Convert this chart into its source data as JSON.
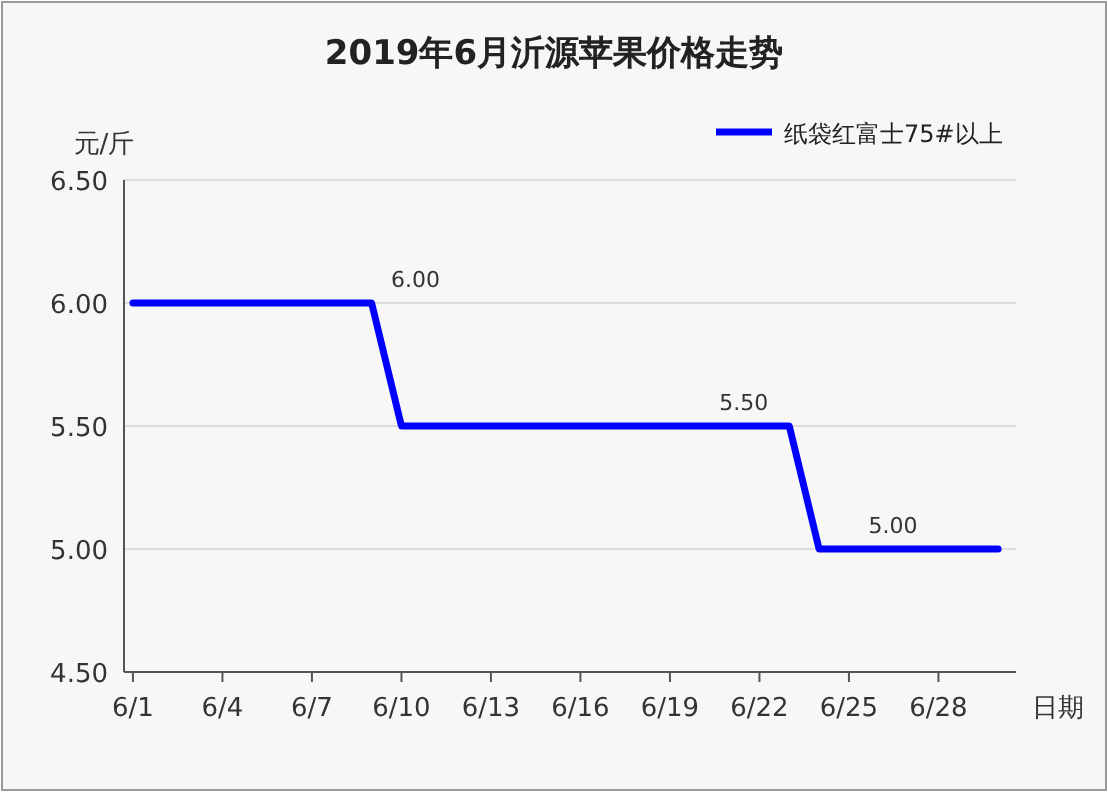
{
  "chart_data": {
    "type": "line",
    "title": "2019年6月沂源苹果价格走势",
    "xlabel": "日期",
    "ylabel": "元/斤",
    "categories": [
      "6/1",
      null,
      null,
      "6/4",
      null,
      null,
      "6/7",
      null,
      null,
      "6/10",
      null,
      null,
      "6/13",
      null,
      null,
      "6/16",
      null,
      null,
      "6/19",
      null,
      null,
      "6/22",
      null,
      null,
      "6/25",
      null,
      null,
      "6/28",
      null,
      null
    ],
    "series": [
      {
        "name": "纸袋红富士75#以上",
        "color": "#0000ff",
        "values": [
          6.0,
          6.0,
          6.0,
          6.0,
          6.0,
          6.0,
          6.0,
          6.0,
          6.0,
          5.5,
          5.5,
          5.5,
          5.5,
          5.5,
          5.5,
          5.5,
          5.5,
          5.5,
          5.5,
          5.5,
          5.5,
          5.5,
          5.5,
          5.0,
          5.0,
          5.0,
          5.0,
          5.0,
          5.0,
          5.0
        ],
        "value_labels": [
          null,
          null,
          null,
          null,
          null,
          null,
          null,
          null,
          "6.00",
          null,
          null,
          null,
          null,
          null,
          null,
          null,
          null,
          null,
          null,
          "5.50",
          null,
          null,
          null,
          null,
          "5.00",
          null,
          null,
          null,
          null,
          null
        ]
      }
    ],
    "ylim": [
      4.5,
      6.5
    ],
    "yticks": [
      {
        "value": 4.5,
        "label": "4.50"
      },
      {
        "value": 5,
        "label": "5.00"
      },
      {
        "value": 5.5,
        "label": "5.50"
      },
      {
        "value": 6,
        "label": "6.00"
      },
      {
        "value": 6.5,
        "label": "6.50"
      }
    ],
    "grid": "y",
    "legend": "top right",
    "marker": "none",
    "line_style": "solid"
  }
}
